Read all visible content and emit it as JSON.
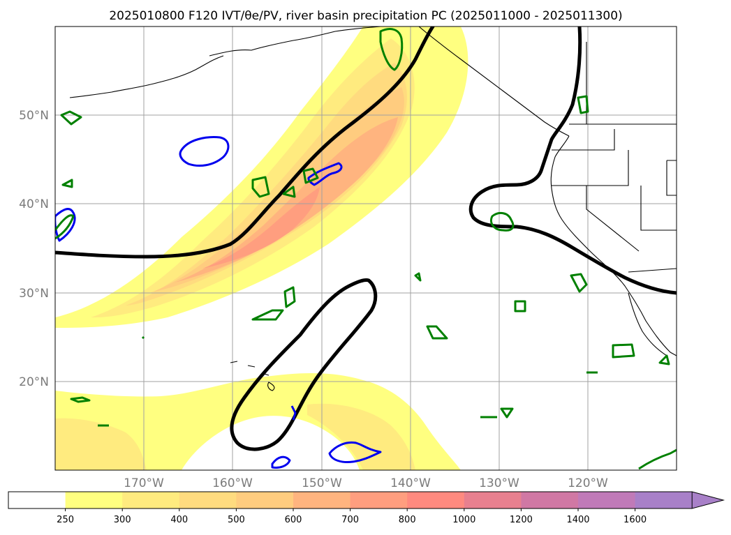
{
  "title": "2025010800 F120 IVT/θe/PV, river basin precipitation PC (2025011000 - 2025011300)",
  "map": {
    "lat_labels": [
      "50°N",
      "40°N",
      "30°N",
      "20°N"
    ],
    "lon_labels": [
      "170°W",
      "160°W",
      "150°W",
      "140°W",
      "130°W",
      "120°W"
    ],
    "gridlines": true
  },
  "colorbar": {
    "ticks": [
      "250",
      "300",
      "400",
      "500",
      "600",
      "700",
      "800",
      "1000",
      "1200",
      "1400",
      "1600"
    ],
    "colors": [
      "#ffffff",
      "#ffff80",
      "#ffeb7f",
      "#ffdb7f",
      "#ffcc7f",
      "#ffb47f",
      "#ff9e7f",
      "#ff8a7f",
      "#e8808f",
      "#d078a4",
      "#c07ab8",
      "#a880c8"
    ],
    "extend": "max"
  },
  "colors": {
    "ivt_fill_1": "#ffff80",
    "ivt_fill_2": "#ffeb7f",
    "ivt_fill_3": "#ffdb7f",
    "ivt_fill_4": "#ffcc7f",
    "ivt_fill_5": "#ffb47f",
    "ivt_fill_6": "#ff9e7f",
    "theta_e_contour": "#000000",
    "pv_blue": "#0000ee",
    "pv_green": "#008000",
    "coastline": "#000000"
  }
}
